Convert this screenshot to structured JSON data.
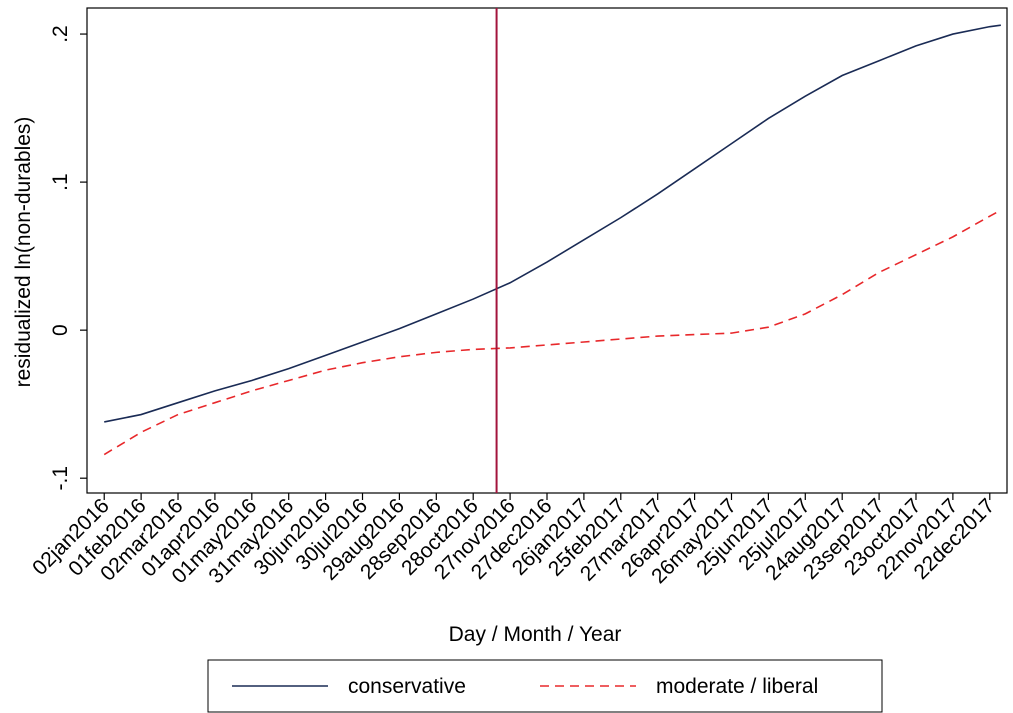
{
  "chart_data": {
    "type": "line",
    "x_label": "Day / Month / Year",
    "y_label": "residualized ln(non-durables)",
    "x": [
      "2016-01-02",
      "2016-02-01",
      "2016-03-02",
      "2016-04-01",
      "2016-05-01",
      "2016-05-31",
      "2016-06-30",
      "2016-07-30",
      "2016-08-29",
      "2016-09-28",
      "2016-10-28",
      "2016-11-27",
      "2016-12-27",
      "2017-01-26",
      "2017-02-25",
      "2017-03-27",
      "2017-04-26",
      "2017-05-26",
      "2017-06-25",
      "2017-07-25",
      "2017-08-24",
      "2017-09-23",
      "2017-10-23",
      "2017-11-22",
      "2017-12-22",
      "2017-12-31"
    ],
    "series": [
      {
        "name": "conservative",
        "color": "#1a2b55",
        "dash": false,
        "values": [
          -0.062,
          -0.057,
          -0.049,
          -0.041,
          -0.034,
          -0.026,
          -0.017,
          -0.008,
          0.001,
          0.011,
          0.021,
          0.032,
          0.046,
          0.061,
          0.076,
          0.092,
          0.109,
          0.126,
          0.143,
          0.158,
          0.172,
          0.182,
          0.192,
          0.2,
          0.205,
          0.206
        ]
      },
      {
        "name": "moderate / liberal",
        "color": "#e8282b",
        "dash": true,
        "values": [
          -0.084,
          -0.069,
          -0.057,
          -0.049,
          -0.041,
          -0.034,
          -0.027,
          -0.022,
          -0.018,
          -0.015,
          -0.013,
          -0.012,
          -0.01,
          -0.008,
          -0.006,
          -0.004,
          -0.003,
          -0.002,
          0.002,
          0.011,
          0.024,
          0.039,
          0.051,
          0.063,
          0.077,
          0.081
        ]
      }
    ],
    "vline": {
      "x": "2016-11-16",
      "color": "#a3143c"
    },
    "xlim": [
      "2015-12-19",
      "2018-01-05"
    ],
    "xticks": [
      {
        "value": "2016-01-02",
        "label": "02jan2016"
      },
      {
        "value": "2016-02-01",
        "label": "01feb2016"
      },
      {
        "value": "2016-03-02",
        "label": "02mar2016"
      },
      {
        "value": "2016-04-01",
        "label": "01apr2016"
      },
      {
        "value": "2016-05-01",
        "label": "01may2016"
      },
      {
        "value": "2016-05-31",
        "label": "31may2016"
      },
      {
        "value": "2016-06-30",
        "label": "30jun2016"
      },
      {
        "value": "2016-07-30",
        "label": "30jul2016"
      },
      {
        "value": "2016-08-29",
        "label": "29aug2016"
      },
      {
        "value": "2016-09-28",
        "label": "28sep2016"
      },
      {
        "value": "2016-10-28",
        "label": "28oct2016"
      },
      {
        "value": "2016-11-27",
        "label": "27nov2016"
      },
      {
        "value": "2016-12-27",
        "label": "27dec2016"
      },
      {
        "value": "2017-01-26",
        "label": "26jan2017"
      },
      {
        "value": "2017-02-25",
        "label": "25feb2017"
      },
      {
        "value": "2017-03-27",
        "label": "27mar2017"
      },
      {
        "value": "2017-04-26",
        "label": "26apr2017"
      },
      {
        "value": "2017-05-26",
        "label": "26may2017"
      },
      {
        "value": "2017-06-25",
        "label": "25jun2017"
      },
      {
        "value": "2017-07-25",
        "label": "25jul2017"
      },
      {
        "value": "2017-08-24",
        "label": "24aug2017"
      },
      {
        "value": "2017-09-23",
        "label": "23sep2017"
      },
      {
        "value": "2017-10-23",
        "label": "23oct2017"
      },
      {
        "value": "2017-11-22",
        "label": "22nov2017"
      },
      {
        "value": "2017-12-22",
        "label": "22dec2017"
      }
    ],
    "ylim": [
      -0.11,
      0.2176
    ],
    "yticks": [
      {
        "value": -0.1,
        "label": "-.1"
      },
      {
        "value": 0,
        "label": "0"
      },
      {
        "value": 0.1,
        "label": ".1"
      },
      {
        "value": 0.2,
        "label": ".2"
      }
    ],
    "grid": false
  }
}
